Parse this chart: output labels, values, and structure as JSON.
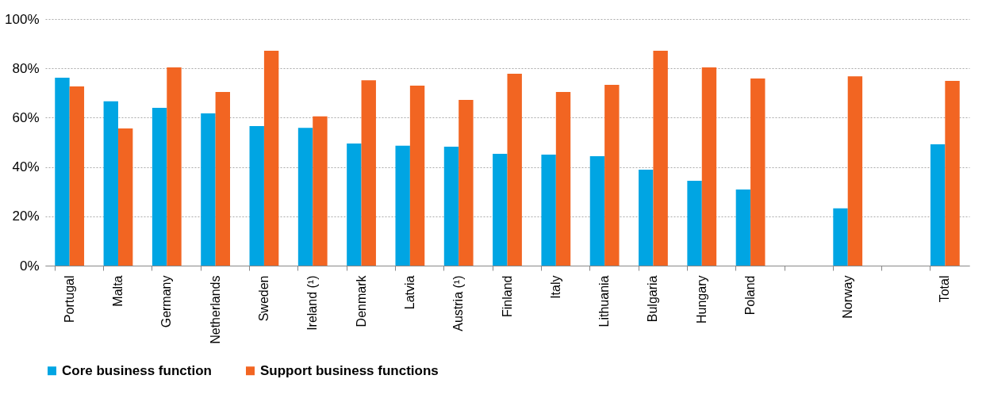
{
  "chart_data": {
    "type": "bar",
    "categories": [
      "Portugal",
      "Malta",
      "Germany",
      "Netherlands",
      "Sweden",
      "Ireland (¹)",
      "Denmark",
      "Latvia",
      "Austria (¹)",
      "Finland",
      "Italy",
      "Lithuania",
      "Bulgaria",
      "Hungary",
      "Poland",
      null,
      "Norway",
      null,
      "Total"
    ],
    "series": [
      {
        "name": "Core business function",
        "color": "#00a5e3",
        "values": [
          76.2,
          66.6,
          64,
          61.7,
          56.6,
          55.9,
          49.5,
          48.6,
          48.2,
          45.3,
          45,
          44.4,
          38.9,
          34.4,
          30.9,
          null,
          23.2,
          null,
          49.2
        ]
      },
      {
        "name": "Support business functions",
        "color": "#f26522",
        "values": [
          72.7,
          55.6,
          80.4,
          70.4,
          87.1,
          60.5,
          75.2,
          73,
          67.2,
          77.8,
          70.4,
          73.3,
          87.1,
          80.4,
          75.9,
          null,
          76.8,
          null,
          74.9
        ]
      }
    ],
    "ylim": [
      0,
      100
    ],
    "yticks": [
      {
        "value": 0,
        "label": "0%"
      },
      {
        "value": 20,
        "label": "20%"
      },
      {
        "value": 40,
        "label": "40%"
      },
      {
        "value": 60,
        "label": "60%"
      },
      {
        "value": 80,
        "label": "80%"
      },
      {
        "value": 100,
        "label": "100%"
      }
    ],
    "grid": "y",
    "legend": "bottom"
  }
}
